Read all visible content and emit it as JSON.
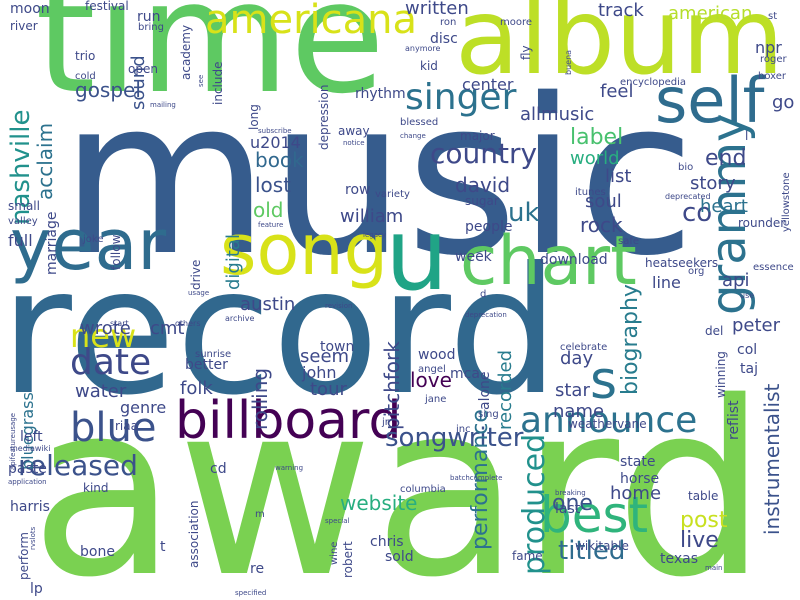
{
  "words": [
    {
      "text": "music",
      "color": "#365c8d"
    },
    {
      "text": "award",
      "color": "#7ad151"
    },
    {
      "text": "record",
      "color": "#31688e"
    },
    {
      "text": "time",
      "color": "#5ec962"
    },
    {
      "text": "album",
      "color": "#bddf26"
    },
    {
      "text": "year",
      "color": "#2f6c8e"
    },
    {
      "text": "song",
      "color": "#d8e219"
    },
    {
      "text": "u",
      "color": "#20a486"
    },
    {
      "text": "chart",
      "color": "#5ec962"
    },
    {
      "text": "self",
      "color": "#2f6c8e"
    },
    {
      "text": "billboard",
      "color": "#440154"
    },
    {
      "text": "best",
      "color": "#2fb47c"
    },
    {
      "text": "americana",
      "color": "#d8e219"
    },
    {
      "text": "grammy",
      "color": "#2c728e"
    },
    {
      "text": "blue",
      "color": "#3b528b"
    },
    {
      "text": "announce",
      "color": "#2c728e"
    },
    {
      "text": "s",
      "color": "#2c728e"
    },
    {
      "text": "singer",
      "color": "#2c728e"
    },
    {
      "text": "date",
      "color": "#3e4989"
    },
    {
      "text": "new",
      "color": "#d8e219"
    },
    {
      "text": "nashville",
      "color": "#21918c"
    },
    {
      "text": "country",
      "color": "#3e4989"
    },
    {
      "text": "released",
      "color": "#3b528b"
    },
    {
      "text": "titled",
      "color": "#2f6c8e"
    },
    {
      "text": "songwriter",
      "color": "#3b528b"
    },
    {
      "text": "instrumentalist",
      "color": "#3b528b"
    },
    {
      "text": "produced",
      "color": "#21918c"
    },
    {
      "text": "performance",
      "color": "#2c728e"
    },
    {
      "text": "biography",
      "color": "#287c8e"
    },
    {
      "text": "website",
      "color": "#28ae80"
    },
    {
      "text": "gospel",
      "color": "#3b528b"
    },
    {
      "text": "uk",
      "color": "#2c728e"
    },
    {
      "text": "co",
      "color": "#3e4989"
    },
    {
      "text": "post",
      "color": "#c8e020"
    },
    {
      "text": "one",
      "color": "#3b528b"
    },
    {
      "text": "live",
      "color": "#3e4989"
    },
    {
      "text": "written",
      "color": "#3e4989"
    },
    {
      "text": "label",
      "color": "#48c16e"
    },
    {
      "text": "acclaim",
      "color": "#2c728e"
    },
    {
      "text": "david",
      "color": "#3e4989"
    },
    {
      "text": "book",
      "color": "#31688e"
    },
    {
      "text": "lost",
      "color": "#3b528b"
    },
    {
      "text": "old",
      "color": "#5ec962"
    },
    {
      "text": "digital",
      "color": "#287c8e"
    },
    {
      "text": "sound",
      "color": "#3b528b"
    },
    {
      "text": "allmusic",
      "color": "#3e4989"
    },
    {
      "text": "end",
      "color": "#3e4989"
    },
    {
      "text": "story",
      "color": "#3e4989"
    },
    {
      "text": "heart",
      "color": "#2c728e"
    },
    {
      "text": "rock",
      "color": "#3e4989"
    },
    {
      "text": "soul",
      "color": "#3e4989"
    },
    {
      "text": "list",
      "color": "#3e4989"
    },
    {
      "text": "world",
      "color": "#28ae80"
    },
    {
      "text": "feel",
      "color": "#3e4989"
    },
    {
      "text": "center",
      "color": "#3e4989"
    },
    {
      "text": "william",
      "color": "#3e4989"
    },
    {
      "text": "peter",
      "color": "#3e4989"
    },
    {
      "text": "api",
      "color": "#3e4989"
    },
    {
      "text": "line",
      "color": "#3e4989"
    },
    {
      "text": "austin",
      "color": "#3e4989"
    },
    {
      "text": "cmt",
      "color": "#3e4989"
    },
    {
      "text": "wrote",
      "color": "#3e4989"
    },
    {
      "text": "folk",
      "color": "#3e4989"
    },
    {
      "text": "rolling",
      "color": "#3e4989"
    },
    {
      "text": "pitchfork",
      "color": "#3e4989"
    },
    {
      "text": "recorded",
      "color": "#287c8e"
    },
    {
      "text": "love",
      "color": "#440154"
    },
    {
      "text": "day",
      "color": "#3e4989"
    },
    {
      "text": "star",
      "color": "#3e4989"
    },
    {
      "text": "name",
      "color": "#3e4989"
    },
    {
      "text": "home",
      "color": "#3e4989"
    },
    {
      "text": "tour",
      "color": "#3e4989"
    },
    {
      "text": "john",
      "color": "#3e4989"
    },
    {
      "text": "seem",
      "color": "#3e4989"
    },
    {
      "text": "genre",
      "color": "#3e4989"
    },
    {
      "text": "water",
      "color": "#3e4989"
    },
    {
      "text": "bluegrass",
      "color": "#2c728e"
    },
    {
      "text": "track",
      "color": "#3e4989"
    },
    {
      "text": "american",
      "color": "#b5de2b"
    },
    {
      "text": "npr",
      "color": "#3e4989"
    },
    {
      "text": "go",
      "color": "#3e4989"
    },
    {
      "text": "rhythm",
      "color": "#3e4989"
    },
    {
      "text": "moon",
      "color": "#3e4989"
    },
    {
      "text": "run",
      "color": "#3e4989"
    },
    {
      "text": "disc",
      "color": "#3e4989"
    },
    {
      "text": "kid",
      "color": "#3e4989"
    },
    {
      "text": "festival",
      "color": "#3e4989"
    },
    {
      "text": "river",
      "color": "#3e4989"
    },
    {
      "text": "trio",
      "color": "#3e4989"
    },
    {
      "text": "open",
      "color": "#3e4989"
    },
    {
      "text": "bring",
      "color": "#3e4989"
    },
    {
      "text": "academy",
      "color": "#3e4989"
    },
    {
      "text": "include",
      "color": "#3e4989"
    },
    {
      "text": "long",
      "color": "#3e4989"
    },
    {
      "text": "depression",
      "color": "#3e4989"
    },
    {
      "text": "ron",
      "color": "#3e4989"
    },
    {
      "text": "moore",
      "color": "#3e4989"
    },
    {
      "text": "buena",
      "color": "#3e4989"
    },
    {
      "text": "fly",
      "color": "#3e4989"
    },
    {
      "text": "anymore",
      "color": "#3e4989"
    },
    {
      "text": "roger",
      "color": "#3e4989"
    },
    {
      "text": "boxer",
      "color": "#3e4989"
    },
    {
      "text": "encyclopedia",
      "color": "#3e4989"
    },
    {
      "text": "blessed",
      "color": "#3e4989"
    },
    {
      "text": "mailing",
      "color": "#3e4989"
    },
    {
      "text": "cold",
      "color": "#3e4989"
    },
    {
      "text": "see",
      "color": "#3e4989"
    },
    {
      "text": "st",
      "color": "#3e4989"
    },
    {
      "text": "u2014",
      "color": "#3e4989"
    },
    {
      "text": "marriage",
      "color": "#3e4989"
    },
    {
      "text": "follow",
      "color": "#3e4989"
    },
    {
      "text": "drive",
      "color": "#3e4989"
    },
    {
      "text": "row",
      "color": "#3e4989"
    },
    {
      "text": "variety",
      "color": "#3e4989"
    },
    {
      "text": "sugar",
      "color": "#3e4989"
    },
    {
      "text": "people",
      "color": "#3e4989"
    },
    {
      "text": "itunes",
      "color": "#3e4989"
    },
    {
      "text": "deprecated",
      "color": "#3e4989"
    },
    {
      "text": "bio",
      "color": "#3e4989"
    },
    {
      "text": "rounder",
      "color": "#3e4989"
    },
    {
      "text": "yellowstone",
      "color": "#3e4989"
    },
    {
      "text": "subscribe",
      "color": "#3e4989"
    },
    {
      "text": "notice",
      "color": "#3e4989"
    },
    {
      "text": "change",
      "color": "#3e4989"
    },
    {
      "text": "away",
      "color": "#3e4989"
    },
    {
      "text": "major",
      "color": "#3e4989"
    },
    {
      "text": "valley",
      "color": "#3e4989"
    },
    {
      "text": "small",
      "color": "#3e4989"
    },
    {
      "text": "full",
      "color": "#3e4989"
    },
    {
      "text": "joke",
      "color": "#3e4989"
    },
    {
      "text": "feature",
      "color": "#3e4989"
    },
    {
      "text": "legacy",
      "color": "#3e4989"
    },
    {
      "text": "safe",
      "color": "#3e4989"
    },
    {
      "text": "download",
      "color": "#3e4989"
    },
    {
      "text": "week",
      "color": "#3e4989"
    },
    {
      "text": "heatseekers",
      "color": "#3e4989"
    },
    {
      "text": "org",
      "color": "#3e4989"
    },
    {
      "text": "essence",
      "color": "#3e4989"
    },
    {
      "text": "use",
      "color": "#3e4989"
    },
    {
      "text": "better",
      "color": "#3e4989"
    },
    {
      "text": "usage",
      "color": "#3e4989"
    },
    {
      "text": "others",
      "color": "#3e4989"
    },
    {
      "text": "revision",
      "color": "#3e4989"
    },
    {
      "text": "archive",
      "color": "#3e4989"
    },
    {
      "text": "start",
      "color": "#3e4989"
    },
    {
      "text": "sunrise",
      "color": "#3e4989"
    },
    {
      "text": "town",
      "color": "#3e4989"
    },
    {
      "text": "wood",
      "color": "#3e4989"
    },
    {
      "text": "angel",
      "color": "#3e4989"
    },
    {
      "text": "mca",
      "color": "#3e4989"
    },
    {
      "text": "alone",
      "color": "#3e4989"
    },
    {
      "text": "celebrate",
      "color": "#3e4989"
    },
    {
      "text": "deprecation",
      "color": "#3e4989"
    },
    {
      "text": "d",
      "color": "#3e4989"
    },
    {
      "text": "del",
      "color": "#3e4989"
    },
    {
      "text": "col",
      "color": "#3e4989"
    },
    {
      "text": "taj",
      "color": "#3e4989"
    },
    {
      "text": "winning",
      "color": "#3e4989"
    },
    {
      "text": "reflist",
      "color": "#3e4989"
    },
    {
      "text": "weathervane",
      "color": "#3e4989"
    },
    {
      "text": "jane",
      "color": "#3e4989"
    },
    {
      "text": "jr",
      "color": "#3e4989"
    },
    {
      "text": "sing",
      "color": "#3e4989"
    },
    {
      "text": "inc",
      "color": "#3e4989"
    },
    {
      "text": "riaa",
      "color": "#3e4989"
    },
    {
      "text": "left",
      "color": "#3e4989"
    },
    {
      "text": "mediawiki",
      "color": "#3e4989"
    },
    {
      "text": "paste",
      "color": "#3e4989"
    },
    {
      "text": "application",
      "color": "#3e4989"
    },
    {
      "text": "harris",
      "color": "#3e4989"
    },
    {
      "text": "perform",
      "color": "#3e4989"
    },
    {
      "text": "apifeatureusage",
      "color": "#3e4989"
    },
    {
      "text": "kind",
      "color": "#3e4989"
    },
    {
      "text": "bone",
      "color": "#3e4989"
    },
    {
      "text": "cd",
      "color": "#3e4989"
    },
    {
      "text": "association",
      "color": "#3e4989"
    },
    {
      "text": "t",
      "color": "#3e4989"
    },
    {
      "text": "m",
      "color": "#3e4989"
    },
    {
      "text": "re",
      "color": "#3e4989"
    },
    {
      "text": "robert",
      "color": "#3e4989"
    },
    {
      "text": "warning",
      "color": "#3e4989"
    },
    {
      "text": "columbia",
      "color": "#3e4989"
    },
    {
      "text": "special",
      "color": "#3e4989"
    },
    {
      "text": "wine",
      "color": "#3e4989"
    },
    {
      "text": "chris",
      "color": "#3e4989"
    },
    {
      "text": "sold",
      "color": "#3e4989"
    },
    {
      "text": "fame",
      "color": "#3e4989"
    },
    {
      "text": "wikitable",
      "color": "#3e4989"
    },
    {
      "text": "last",
      "color": "#3e4989"
    },
    {
      "text": "state",
      "color": "#3e4989"
    },
    {
      "text": "horse",
      "color": "#3e4989"
    },
    {
      "text": "batchcomplete",
      "color": "#3e4989"
    },
    {
      "text": "breaking",
      "color": "#3e4989"
    },
    {
      "text": "table",
      "color": "#3e4989"
    },
    {
      "text": "texas",
      "color": "#3e4989"
    },
    {
      "text": "main",
      "color": "#3e4989"
    },
    {
      "text": "lp",
      "color": "#3e4989"
    },
    {
      "text": "rvslots",
      "color": "#3e4989"
    },
    {
      "text": "specified",
      "color": "#3e4989"
    },
    {
      "text": "l",
      "color": "#3e4989"
    }
  ]
}
